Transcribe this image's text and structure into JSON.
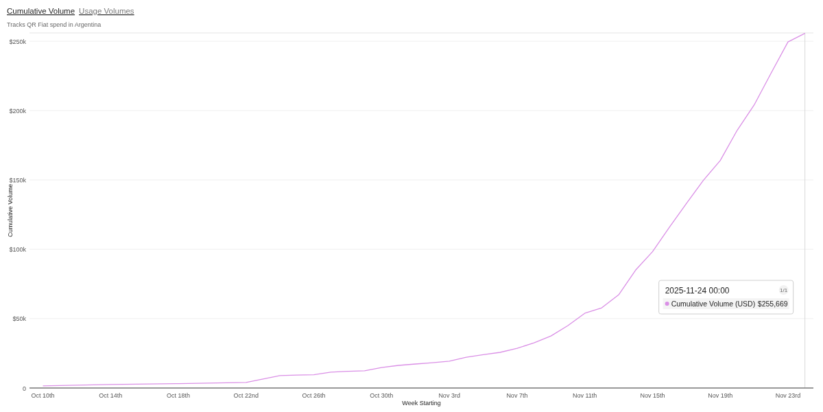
{
  "chart_data": {
    "type": "line",
    "title": "Cumulative Volume",
    "subtitle": "Usage Volumes",
    "annotations": [
      "Tracks QR Fiat spend in Argentina",
      "2025-11-24 00:00",
      "1/1",
      "Cumulative Volume (USD)",
      "$255,669"
    ],
    "xlabel": "Week Starting",
    "ylabel": "Cumulative Volume",
    "x": [
      "2025-10-10",
      "2025-10-14",
      "2025-10-18",
      "2025-10-22",
      "2025-10-24",
      "2025-10-25",
      "2025-10-26",
      "2025-10-27",
      "2025-10-28",
      "2025-10-29",
      "2025-10-30",
      "2025-10-31",
      "2025-11-01",
      "2025-11-02",
      "2025-11-03",
      "2025-11-04",
      "2025-11-05",
      "2025-11-06",
      "2025-11-07",
      "2025-11-08",
      "2025-11-09",
      "2025-11-10",
      "2025-11-11",
      "2025-11-12",
      "2025-11-13",
      "2025-11-14",
      "2025-11-15",
      "2025-11-16",
      "2025-11-17",
      "2025-11-18",
      "2025-11-19",
      "2025-11-20",
      "2025-11-21",
      "2025-11-22",
      "2025-11-23",
      "2025-11-24"
    ],
    "series": [
      {
        "color": "#da8fe6",
        "values": [
          1500,
          2500,
          3200,
          4000,
          9000,
          9300,
          9600,
          11400,
          12000,
          12400,
          14800,
          16300,
          17300,
          18200,
          19300,
          22200,
          24000,
          25700,
          28600,
          32600,
          37500,
          45000,
          53900,
          57800,
          67200,
          85000,
          98300,
          116000,
          133000,
          149700,
          164000,
          185800,
          204000,
          227000,
          249500,
          255669
        ]
      }
    ],
    "xlim": [
      "2025-10-09T05:00",
      "2025-11-24T12:00"
    ],
    "xticks": [
      {
        "value": "2025-10-10",
        "label": "Oct 10th"
      },
      {
        "value": "2025-10-14",
        "label": "Oct 14th"
      },
      {
        "value": "2025-10-18",
        "label": "Oct 18th"
      },
      {
        "value": "2025-10-22",
        "label": "Oct 22nd"
      },
      {
        "value": "2025-10-26",
        "label": "Oct 26th"
      },
      {
        "value": "2025-10-30",
        "label": "Oct 30th"
      },
      {
        "value": "2025-11-03",
        "label": "Nov 3rd"
      },
      {
        "value": "2025-11-07",
        "label": "Nov 7th"
      },
      {
        "value": "2025-11-11",
        "label": "Nov 11th"
      },
      {
        "value": "2025-11-15",
        "label": "Nov 15th"
      },
      {
        "value": "2025-11-19",
        "label": "Nov 19th"
      },
      {
        "value": "2025-11-23",
        "label": "Nov 23rd"
      }
    ],
    "ylim": [
      0,
      256000
    ],
    "yticks": [
      0,
      {
        "value": 50000,
        "label": "$50k"
      },
      {
        "value": 100000,
        "label": "$100k"
      },
      {
        "value": 150000,
        "label": "$150k"
      },
      {
        "value": 200000,
        "label": "$200k"
      },
      {
        "value": 250000,
        "label": "$250k"
      }
    ],
    "ref_lines": [
      {
        "axis": "x",
        "value": "2025-11-24",
        "color": "#d8d8d8"
      }
    ],
    "grid": "y",
    "marker": "none",
    "line_style": "solid"
  }
}
